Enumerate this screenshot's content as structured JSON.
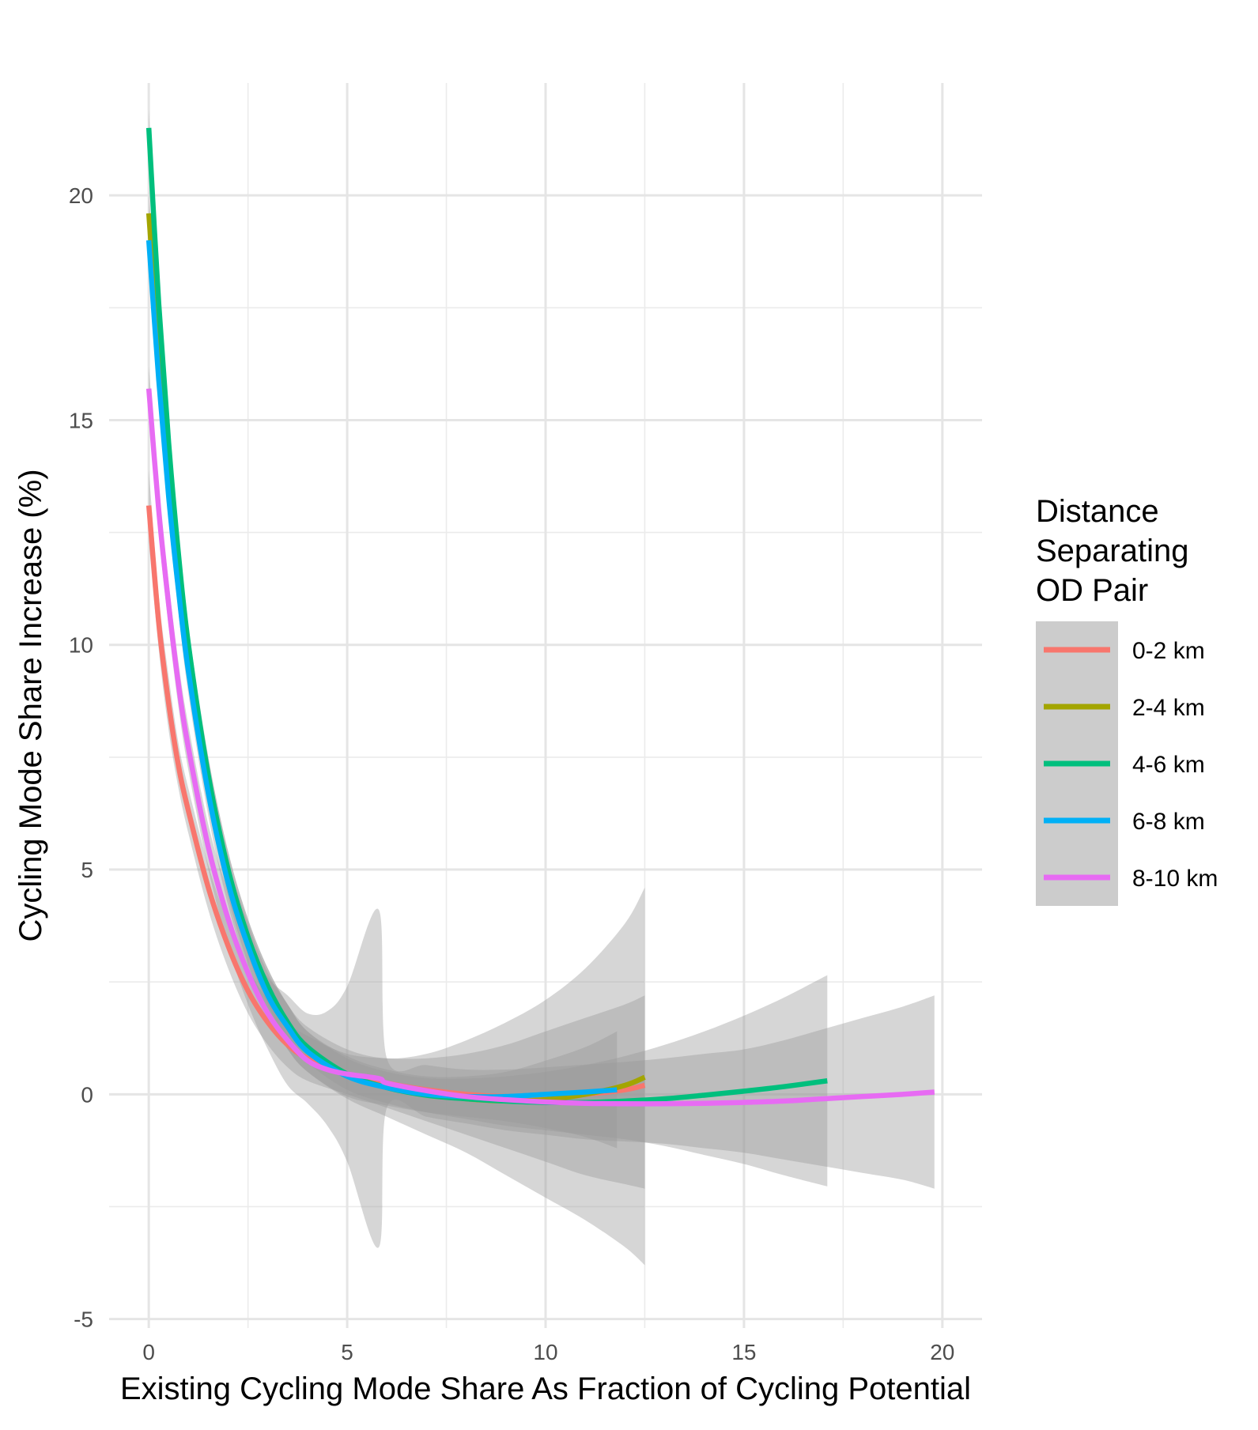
{
  "chart_data": {
    "type": "line",
    "title": "",
    "xlabel": "Existing Cycling Mode Share As Fraction of Cycling Potential",
    "ylabel": "Cycling Mode Share Increase (%)",
    "xlim": [
      -1,
      21
    ],
    "ylim": [
      -5.2,
      22.5
    ],
    "x_ticks": [
      0,
      5,
      10,
      15,
      20
    ],
    "y_ticks": [
      -5,
      0,
      5,
      10,
      15,
      20
    ],
    "x_tick_labels": [
      "0",
      "5",
      "10",
      "15",
      "20"
    ],
    "y_tick_labels": [
      "-5",
      "0",
      "5",
      "10",
      "15",
      "20"
    ],
    "grid": true,
    "legend": {
      "title_lines": [
        "Distance",
        "Separating",
        "OD Pair"
      ],
      "position": "right"
    },
    "series": [
      {
        "name": "0-2 km",
        "color": "#F8766D",
        "x": [
          0,
          0.25,
          0.5,
          0.75,
          1,
          1.5,
          2,
          2.5,
          3,
          3.5,
          4,
          5,
          6,
          7,
          8,
          9,
          10,
          11,
          12,
          12.5
        ],
        "y": [
          13.1,
          10.5,
          8.7,
          7.3,
          6.3,
          4.6,
          3.3,
          2.3,
          1.6,
          1.1,
          0.8,
          0.45,
          0.25,
          0.1,
          0.0,
          -0.05,
          -0.05,
          0.0,
          0.1,
          0.2
        ],
        "ci_lower": [
          12.3,
          9.9,
          8.1,
          6.8,
          5.8,
          4.1,
          2.8,
          1.8,
          1.1,
          0.6,
          0.3,
          0.0,
          -0.3,
          -0.6,
          -0.9,
          -1.2,
          -1.5,
          -1.8,
          -2.0,
          -2.1
        ],
        "ci_upper": [
          13.9,
          11.1,
          9.3,
          7.8,
          6.8,
          5.1,
          3.8,
          2.8,
          2.1,
          1.6,
          1.3,
          0.9,
          0.8,
          0.8,
          0.9,
          1.1,
          1.4,
          1.7,
          2.0,
          2.2
        ]
      },
      {
        "name": "2-4 km",
        "color": "#A3A500",
        "x": [
          0,
          0.25,
          0.5,
          0.75,
          1,
          1.5,
          2,
          2.5,
          3,
          3.5,
          4,
          5,
          6,
          7,
          8,
          9,
          10,
          11,
          12,
          12.5
        ],
        "y": [
          19.6,
          16.5,
          13.9,
          11.7,
          9.8,
          7.0,
          4.9,
          3.4,
          2.3,
          1.5,
          1.0,
          0.45,
          0.15,
          0.0,
          -0.1,
          -0.15,
          -0.12,
          0.0,
          0.2,
          0.38
        ],
        "ci_lower": [
          19.1,
          16.0,
          13.4,
          11.2,
          9.3,
          6.5,
          4.4,
          2.9,
          1.8,
          1.0,
          0.5,
          -0.1,
          -0.5,
          -0.9,
          -1.3,
          -1.8,
          -2.3,
          -2.8,
          -3.4,
          -3.8
        ],
        "ci_upper": [
          20.1,
          17.0,
          14.4,
          12.2,
          10.3,
          7.5,
          5.4,
          3.9,
          2.8,
          2.0,
          1.5,
          1.0,
          0.8,
          0.9,
          1.2,
          1.6,
          2.1,
          2.8,
          3.8,
          4.6
        ]
      },
      {
        "name": "4-6 km",
        "color": "#00BF7D",
        "x": [
          0,
          0.25,
          0.5,
          0.75,
          1,
          1.5,
          2,
          2.5,
          3,
          3.5,
          4,
          5,
          6,
          7,
          8,
          9,
          10,
          11,
          12,
          13,
          14,
          15,
          16,
          17.1
        ],
        "y": [
          21.5,
          17.6,
          14.5,
          12.0,
          10.0,
          7.1,
          5.0,
          3.5,
          2.4,
          1.6,
          1.05,
          0.45,
          0.15,
          -0.02,
          -0.1,
          -0.15,
          -0.18,
          -0.18,
          -0.15,
          -0.1,
          -0.02,
          0.07,
          0.17,
          0.3
        ],
        "ci_lower": [
          21.1,
          17.2,
          14.1,
          11.6,
          9.6,
          6.7,
          4.6,
          3.1,
          2.0,
          1.2,
          0.7,
          0.1,
          -0.2,
          -0.4,
          -0.55,
          -0.7,
          -0.8,
          -0.9,
          -1.0,
          -1.15,
          -1.35,
          -1.55,
          -1.8,
          -2.05
        ],
        "ci_upper": [
          21.9,
          18.0,
          14.9,
          12.4,
          10.4,
          7.5,
          5.4,
          3.9,
          2.8,
          2.0,
          1.4,
          0.8,
          0.5,
          0.36,
          0.35,
          0.4,
          0.5,
          0.65,
          0.85,
          1.1,
          1.4,
          1.75,
          2.15,
          2.65
        ]
      },
      {
        "name": "6-8 km",
        "color": "#00B0F6",
        "x": [
          0,
          0.25,
          0.5,
          0.75,
          1,
          1.5,
          2,
          2.5,
          3,
          3.5,
          4,
          5,
          6,
          7,
          8,
          9,
          10,
          11,
          11.8
        ],
        "y": [
          19.0,
          15.9,
          13.3,
          11.2,
          9.4,
          6.7,
          4.7,
          3.3,
          2.2,
          1.5,
          0.95,
          0.4,
          0.15,
          0.0,
          -0.05,
          -0.05,
          0.0,
          0.05,
          0.1
        ],
        "ci_lower": [
          18.5,
          15.4,
          12.8,
          10.7,
          8.9,
          6.2,
          4.2,
          2.8,
          1.7,
          1.0,
          0.5,
          -0.05,
          -0.25,
          -0.4,
          -0.5,
          -0.6,
          -0.75,
          -0.95,
          -1.2
        ],
        "ci_upper": [
          19.5,
          16.4,
          13.8,
          11.7,
          9.9,
          7.2,
          5.2,
          3.8,
          2.7,
          2.0,
          1.4,
          0.85,
          0.55,
          0.4,
          0.4,
          0.5,
          0.75,
          1.05,
          1.4
        ]
      },
      {
        "name": "8-10 km",
        "color": "#E76BF3",
        "x": [
          0,
          0.25,
          0.5,
          0.75,
          1,
          1.5,
          2,
          2.5,
          3,
          3.5,
          4,
          4.5,
          5,
          5.8,
          6,
          7,
          8,
          9,
          10,
          11,
          12,
          13,
          14,
          15,
          16,
          17,
          18,
          19,
          19.8
        ],
        "y": [
          15.7,
          13.0,
          10.9,
          9.1,
          7.7,
          5.5,
          3.9,
          2.7,
          1.8,
          1.2,
          0.75,
          0.55,
          0.45,
          0.35,
          0.25,
          0.08,
          -0.05,
          -0.12,
          -0.17,
          -0.2,
          -0.21,
          -0.21,
          -0.2,
          -0.18,
          -0.15,
          -0.1,
          -0.05,
          0.0,
          0.05
        ],
        "ci_lower": [
          15.2,
          12.5,
          10.4,
          8.6,
          7.2,
          5.0,
          3.3,
          2.0,
          1.0,
          0.2,
          -0.2,
          -0.7,
          -1.5,
          -3.4,
          -0.3,
          -0.5,
          -0.65,
          -0.8,
          -0.9,
          -1.0,
          -1.05,
          -1.1,
          -1.2,
          -1.3,
          -1.45,
          -1.6,
          -1.75,
          -1.9,
          -2.1
        ],
        "ci_upper": [
          16.2,
          13.5,
          11.4,
          9.6,
          8.2,
          6.0,
          4.5,
          3.4,
          2.6,
          2.2,
          1.8,
          1.85,
          2.4,
          4.1,
          0.8,
          0.65,
          0.55,
          0.55,
          0.6,
          0.66,
          0.72,
          0.8,
          0.9,
          1.0,
          1.2,
          1.45,
          1.7,
          1.95,
          2.2
        ]
      }
    ]
  }
}
